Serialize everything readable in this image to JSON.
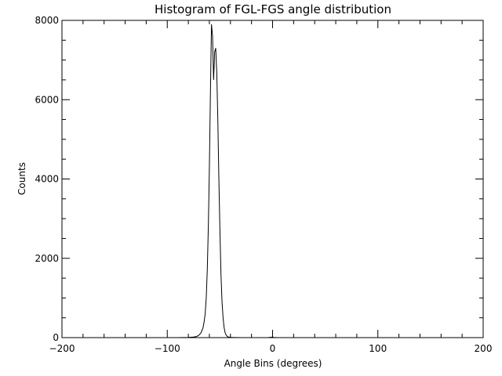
{
  "chart_data": {
    "type": "line",
    "title": "Histogram of FGL-FGS angle distribution",
    "xlabel": "Angle Bins (degrees)",
    "ylabel": "Counts",
    "xlim": [
      -200,
      200
    ],
    "ylim": [
      0,
      8000
    ],
    "x_ticks": [
      -200,
      -100,
      0,
      100,
      200
    ],
    "y_ticks": [
      0,
      2000,
      4000,
      6000,
      8000
    ],
    "x_tick_labels": [
      "−200",
      "−100",
      "0",
      "100",
      "200"
    ],
    "y_tick_labels": [
      "0",
      "2000",
      "4000",
      "6000",
      "8000"
    ],
    "grid": false,
    "legend": "none",
    "line_color": "#000000",
    "series": [
      {
        "x": [
          -200,
          -90,
          -80,
          -75,
          -72,
          -70,
          -68,
          -66,
          -65,
          -64,
          -63,
          -62,
          -61,
          -60,
          -59,
          -58,
          -57,
          -56,
          -55,
          -54,
          -53,
          -52,
          -51,
          -50,
          -49,
          -48,
          -47,
          -46,
          -45,
          -44,
          -43,
          -42,
          -40,
          -38,
          -35,
          -30,
          -20,
          -5,
          -1,
          0,
          1,
          5,
          20,
          100,
          200
        ],
        "y": [
          0,
          0,
          5,
          15,
          30,
          60,
          120,
          250,
          400,
          600,
          1000,
          1700,
          2800,
          4300,
          6200,
          7900,
          7600,
          6500,
          7200,
          7300,
          6700,
          5500,
          4000,
          2700,
          1600,
          900,
          500,
          250,
          120,
          60,
          30,
          15,
          8,
          4,
          2,
          1,
          0,
          0,
          10,
          20,
          5,
          0,
          0,
          0,
          0
        ]
      }
    ]
  }
}
